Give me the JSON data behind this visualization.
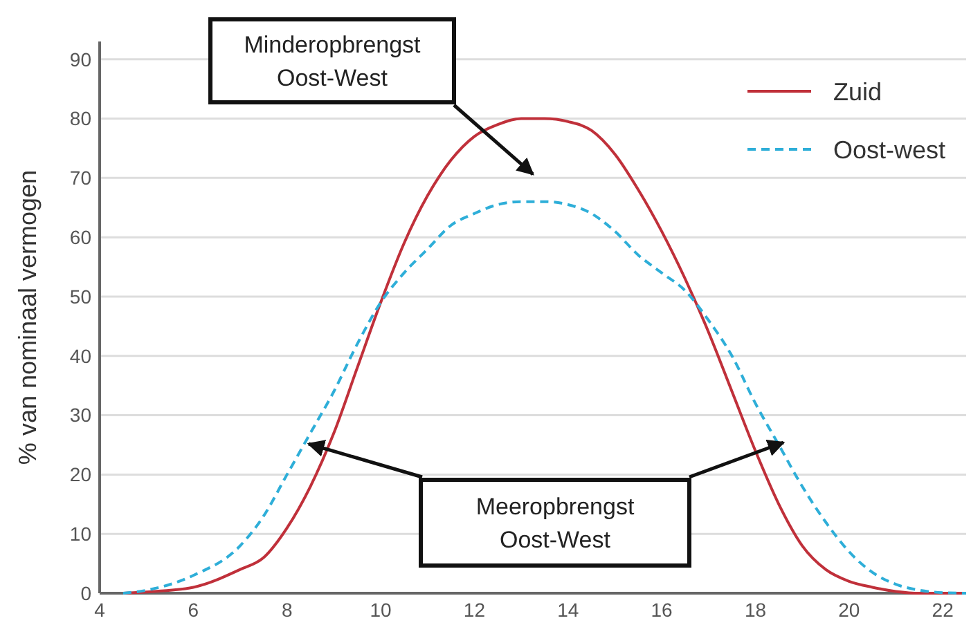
{
  "chart_data": {
    "type": "line",
    "ylabel": "% van nominaal vermogen",
    "x": [
      4.5,
      5,
      6,
      7,
      7.5,
      8,
      8.5,
      9,
      9.5,
      10,
      10.5,
      11,
      11.5,
      12,
      12.5,
      13,
      13.5,
      14,
      14.5,
      15,
      15.5,
      16,
      16.5,
      17,
      17.5,
      18,
      18.5,
      19,
      19.5,
      20,
      20.5,
      21,
      21.5,
      22,
      22.5
    ],
    "series": [
      {
        "name": "Zuid",
        "color": "#c0303a",
        "line_style": "solid",
        "values": [
          0,
          0.2,
          1,
          4,
          6,
          11,
          18,
          27,
          38,
          49,
          59,
          67,
          73,
          77,
          79,
          80,
          80,
          79.5,
          78,
          74,
          68,
          61,
          53,
          44,
          34,
          24,
          15,
          8,
          4,
          2,
          1,
          0.3,
          0,
          0,
          0
        ]
      },
      {
        "name": "Oost-west",
        "color": "#2eaed8",
        "line_style": "dashed",
        "values": [
          0,
          0.5,
          3,
          8,
          13,
          20,
          27,
          34,
          42,
          49,
          54,
          58,
          62,
          64,
          65.5,
          66,
          66,
          65.5,
          64,
          61,
          57,
          54,
          51,
          46,
          40,
          32,
          25,
          18,
          12,
          7,
          3.5,
          1.5,
          0.5,
          0.1,
          0
        ]
      }
    ],
    "xlim": [
      4,
      22.5
    ],
    "ylim": [
      0,
      93
    ],
    "xticks": [
      4,
      6,
      8,
      10,
      12,
      14,
      16,
      18,
      20,
      22
    ],
    "yticks": [
      0,
      10,
      20,
      30,
      40,
      50,
      60,
      70,
      80,
      90
    ],
    "grid": "y",
    "legend": "top right",
    "marker": "none",
    "annotations": [
      "Minderopbrengst\nOost-West",
      "Meeropbrengst\nOost-West"
    ]
  }
}
